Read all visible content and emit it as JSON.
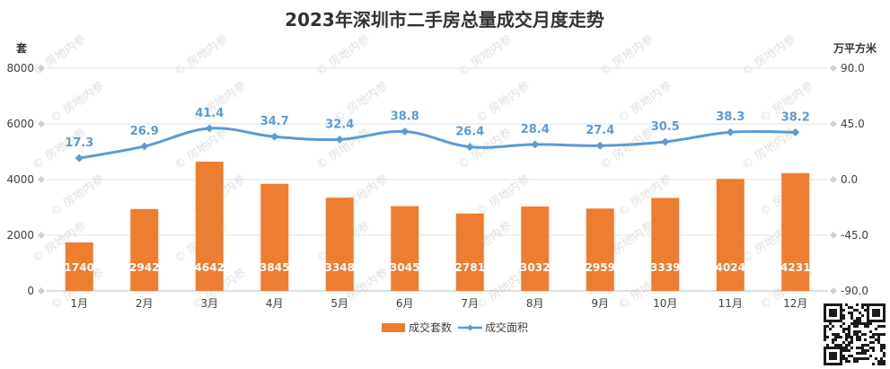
{
  "chart_data": {
    "type": "bar",
    "title": "2023年深圳市二手房总量成交月度走势",
    "categories": [
      "1月",
      "2月",
      "3月",
      "4月",
      "5月",
      "6月",
      "7月",
      "8月",
      "9月",
      "10月",
      "11月",
      "12月"
    ],
    "series": [
      {
        "name": "成交套数",
        "type": "bar",
        "axis": "left",
        "color": "#ed7d31",
        "values": [
          1740,
          2942,
          4642,
          3845,
          3348,
          3045,
          2781,
          3032,
          2959,
          3339,
          4024,
          4231
        ]
      },
      {
        "name": "成交面积",
        "type": "line",
        "axis": "right",
        "color": "#5b9bd5",
        "values": [
          17.3,
          26.9,
          41.4,
          34.7,
          32.4,
          38.8,
          26.4,
          28.4,
          27.4,
          30.5,
          38.3,
          38.2
        ]
      }
    ],
    "y_left": {
      "label": "套",
      "ylim": [
        0,
        8000
      ],
      "ticks": [
        "0",
        "2000",
        "4000",
        "6000",
        "8000"
      ]
    },
    "y_right": {
      "label": "万平方米",
      "ylim": [
        -90,
        90
      ],
      "ticks": [
        "-90.0",
        "-45.0",
        "0.0",
        "45.0",
        "90.0"
      ]
    },
    "grid": true,
    "legend": "bottom-center"
  },
  "watermark": "房地内参"
}
